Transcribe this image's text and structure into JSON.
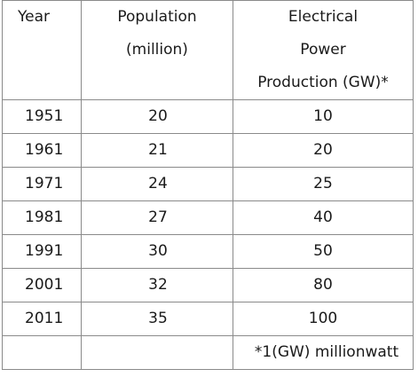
{
  "table": {
    "headers": {
      "year": [
        "Year"
      ],
      "population": [
        "Population",
        "(million)"
      ],
      "power": [
        "Electrical",
        "Power",
        "Production (GW)*"
      ]
    },
    "rows": [
      {
        "year": "1951",
        "population": "20",
        "power": "10"
      },
      {
        "year": "1961",
        "population": "21",
        "power": "20"
      },
      {
        "year": "1971",
        "population": "24",
        "power": "25"
      },
      {
        "year": "1981",
        "population": "27",
        "power": "40"
      },
      {
        "year": "1991",
        "population": "30",
        "power": "50"
      },
      {
        "year": "2001",
        "population": "32",
        "power": "80"
      },
      {
        "year": "2011",
        "population": "35",
        "power": "100"
      }
    ],
    "footnote": "*1(GW) millionwatt"
  }
}
